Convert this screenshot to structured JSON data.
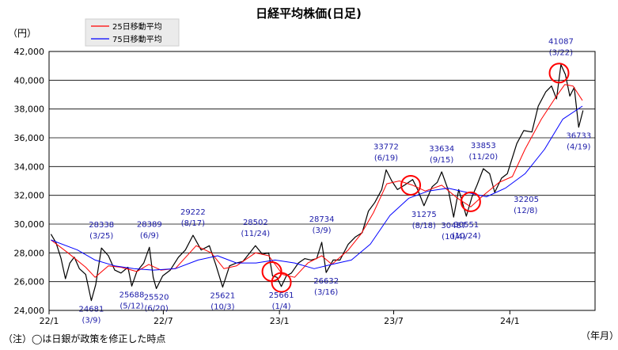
{
  "chart_data": {
    "type": "line",
    "title": "日経平均株価(日足)",
    "y_unit": "（円）",
    "x_unit": "（年月）",
    "ylim": [
      24000,
      42000
    ],
    "yticks": [
      24000,
      26000,
      28000,
      30000,
      32000,
      34000,
      36000,
      38000,
      40000,
      42000
    ],
    "ytick_labels": [
      "24,000",
      "26,000",
      "28,000",
      "30,000",
      "32,000",
      "34,000",
      "36,000",
      "38,000",
      "40,000",
      "42,000"
    ],
    "xlim": [
      "2022-01-01",
      "2024-05-15"
    ],
    "xticks": [
      {
        "date": "2022-01-01",
        "label": "22/1"
      },
      {
        "date": "2022-07-01",
        "label": "22/7"
      },
      {
        "date": "2023-01-01",
        "label": "23/1"
      },
      {
        "date": "2023-07-01",
        "label": "23/7"
      },
      {
        "date": "2024-01-01",
        "label": "24/1"
      }
    ],
    "grid": true,
    "legend_position": "top-left",
    "series": [
      {
        "name": "25日移動平均",
        "color": "#ff0000",
        "points": [
          [
            "2022-01-04",
            28900
          ],
          [
            "2022-01-31",
            28000
          ],
          [
            "2022-02-28",
            27000
          ],
          [
            "2022-03-15",
            26300
          ],
          [
            "2022-04-05",
            27100
          ],
          [
            "2022-04-25",
            27000
          ],
          [
            "2022-05-20",
            26700
          ],
          [
            "2022-06-08",
            27200
          ],
          [
            "2022-06-27",
            26800
          ],
          [
            "2022-07-20",
            26900
          ],
          [
            "2022-08-22",
            28500
          ],
          [
            "2022-09-15",
            28000
          ],
          [
            "2022-10-05",
            26900
          ],
          [
            "2022-10-25",
            27100
          ],
          [
            "2022-11-24",
            28000
          ],
          [
            "2022-12-15",
            27800
          ],
          [
            "2023-01-06",
            26500
          ],
          [
            "2023-01-25",
            26300
          ],
          [
            "2023-02-15",
            27300
          ],
          [
            "2023-03-09",
            27800
          ],
          [
            "2023-03-25",
            27200
          ],
          [
            "2023-04-20",
            28200
          ],
          [
            "2023-05-10",
            29300
          ],
          [
            "2023-05-30",
            30800
          ],
          [
            "2023-06-20",
            32800
          ],
          [
            "2023-07-10",
            33000
          ],
          [
            "2023-07-31",
            32700
          ],
          [
            "2023-08-20",
            32300
          ],
          [
            "2023-09-15",
            32700
          ],
          [
            "2023-10-10",
            31800
          ],
          [
            "2023-10-31",
            31200
          ],
          [
            "2023-11-20",
            32000
          ],
          [
            "2023-12-15",
            32900
          ],
          [
            "2024-01-05",
            33300
          ],
          [
            "2024-01-25",
            35200
          ],
          [
            "2024-02-20",
            37300
          ],
          [
            "2024-03-15",
            38900
          ],
          [
            "2024-03-28",
            39700
          ],
          [
            "2024-04-10",
            39600
          ],
          [
            "2024-04-25",
            38600
          ]
        ]
      },
      {
        "name": "75日移動平均",
        "color": "#0000ff",
        "points": [
          [
            "2022-01-04",
            28900
          ],
          [
            "2022-02-15",
            28200
          ],
          [
            "2022-03-15",
            27500
          ],
          [
            "2022-04-15",
            27100
          ],
          [
            "2022-05-15",
            26900
          ],
          [
            "2022-06-15",
            26800
          ],
          [
            "2022-07-20",
            26900
          ],
          [
            "2022-08-25",
            27500
          ],
          [
            "2022-09-25",
            27800
          ],
          [
            "2022-10-25",
            27300
          ],
          [
            "2022-11-25",
            27300
          ],
          [
            "2022-12-25",
            27500
          ],
          [
            "2023-01-25",
            27300
          ],
          [
            "2023-02-25",
            26900
          ],
          [
            "2023-03-25",
            27200
          ],
          [
            "2023-04-25",
            27500
          ],
          [
            "2023-05-25",
            28600
          ],
          [
            "2023-06-25",
            30600
          ],
          [
            "2023-07-25",
            31800
          ],
          [
            "2023-08-25",
            32300
          ],
          [
            "2023-09-25",
            32500
          ],
          [
            "2023-10-25",
            32200
          ],
          [
            "2023-11-25",
            31900
          ],
          [
            "2023-12-25",
            32500
          ],
          [
            "2024-01-25",
            33500
          ],
          [
            "2024-02-25",
            35200
          ],
          [
            "2024-03-25",
            37300
          ],
          [
            "2024-04-25",
            38200
          ]
        ]
      },
      {
        "name": "日足",
        "color": "#000000",
        "points": [
          [
            "2022-01-04",
            29300
          ],
          [
            "2022-01-12",
            28700
          ],
          [
            "2022-01-20",
            27600
          ],
          [
            "2022-01-27",
            26200
          ],
          [
            "2022-02-03",
            27300
          ],
          [
            "2022-02-10",
            27700
          ],
          [
            "2022-02-18",
            26900
          ],
          [
            "2022-02-28",
            26500
          ],
          [
            "2022-03-09",
            24681
          ],
          [
            "2022-03-16",
            25800
          ],
          [
            "2022-03-25",
            28338
          ],
          [
            "2022-04-05",
            27800
          ],
          [
            "2022-04-15",
            26800
          ],
          [
            "2022-04-25",
            26600
          ],
          [
            "2022-05-06",
            27000
          ],
          [
            "2022-05-12",
            25688
          ],
          [
            "2022-05-20",
            26700
          ],
          [
            "2022-05-31",
            27300
          ],
          [
            "2022-06-09",
            28389
          ],
          [
            "2022-06-15",
            26300
          ],
          [
            "2022-06-20",
            25520
          ],
          [
            "2022-06-30",
            26400
          ],
          [
            "2022-07-12",
            26800
          ],
          [
            "2022-07-25",
            27700
          ],
          [
            "2022-08-05",
            28200
          ],
          [
            "2022-08-17",
            29222
          ],
          [
            "2022-08-30",
            28200
          ],
          [
            "2022-09-12",
            28500
          ],
          [
            "2022-09-22",
            27200
          ],
          [
            "2022-10-03",
            25621
          ],
          [
            "2022-10-14",
            27100
          ],
          [
            "2022-10-25",
            27300
          ],
          [
            "2022-11-04",
            27400
          ],
          [
            "2022-11-15",
            28000
          ],
          [
            "2022-11-24",
            28502
          ],
          [
            "2022-12-05",
            27900
          ],
          [
            "2022-12-15",
            28000
          ],
          [
            "2022-12-21",
            26400
          ],
          [
            "2022-12-28",
            26300
          ],
          [
            "2023-01-04",
            25661
          ],
          [
            "2023-01-12",
            26400
          ],
          [
            "2023-01-20",
            26600
          ],
          [
            "2023-01-31",
            27300
          ],
          [
            "2023-02-10",
            27600
          ],
          [
            "2023-02-20",
            27500
          ],
          [
            "2023-03-01",
            27600
          ],
          [
            "2023-03-09",
            28734
          ],
          [
            "2023-03-16",
            26632
          ],
          [
            "2023-03-27",
            27500
          ],
          [
            "2023-04-07",
            27500
          ],
          [
            "2023-04-20",
            28600
          ],
          [
            "2023-05-01",
            29100
          ],
          [
            "2023-05-12",
            29400
          ],
          [
            "2023-05-22",
            30900
          ],
          [
            "2023-06-01",
            31500
          ],
          [
            "2023-06-12",
            32400
          ],
          [
            "2023-06-19",
            33772
          ],
          [
            "2023-06-28",
            33000
          ],
          [
            "2023-07-07",
            32400
          ],
          [
            "2023-07-18",
            32700
          ],
          [
            "2023-07-31",
            33100
          ],
          [
            "2023-08-08",
            32400
          ],
          [
            "2023-08-18",
            31275
          ],
          [
            "2023-08-31",
            32600
          ],
          [
            "2023-09-08",
            32900
          ],
          [
            "2023-09-15",
            33634
          ],
          [
            "2023-09-26",
            32300
          ],
          [
            "2023-10-04",
            30487
          ],
          [
            "2023-10-12",
            32400
          ],
          [
            "2023-10-24",
            30551
          ],
          [
            "2023-11-02",
            31900
          ],
          [
            "2023-11-10",
            32700
          ],
          [
            "2023-11-20",
            33853
          ],
          [
            "2023-11-30",
            33500
          ],
          [
            "2023-12-08",
            32205
          ],
          [
            "2023-12-19",
            33200
          ],
          [
            "2023-12-28",
            33500
          ],
          [
            "2024-01-12",
            35600
          ],
          [
            "2024-01-23",
            36500
          ],
          [
            "2024-02-05",
            36400
          ],
          [
            "2024-02-15",
            38200
          ],
          [
            "2024-02-27",
            39200
          ],
          [
            "2024-03-07",
            39600
          ],
          [
            "2024-03-15",
            38700
          ],
          [
            "2024-03-22",
            41087
          ],
          [
            "2024-03-29",
            40400
          ],
          [
            "2024-04-05",
            38900
          ],
          [
            "2024-04-12",
            39500
          ],
          [
            "2024-04-19",
            36733
          ],
          [
            "2024-04-26",
            37900
          ]
        ]
      }
    ],
    "annotations": [
      {
        "value": "24681",
        "date": "(3/9)",
        "x": "2022-03-09",
        "y": 24681,
        "pos": "below"
      },
      {
        "value": "28338",
        "date": "(3/25)",
        "x": "2022-03-25",
        "y": 28338,
        "pos": "above"
      },
      {
        "value": "25688",
        "date": "(5/12)",
        "x": "2022-05-12",
        "y": 25688,
        "pos": "below"
      },
      {
        "value": "28389",
        "date": "(6/9)",
        "x": "2022-06-09",
        "y": 28389,
        "pos": "above"
      },
      {
        "value": "25520",
        "date": "(6/20)",
        "x": "2022-06-20",
        "y": 25520,
        "pos": "below"
      },
      {
        "value": "29222",
        "date": "(8/17)",
        "x": "2022-08-17",
        "y": 29222,
        "pos": "above"
      },
      {
        "value": "25621",
        "date": "(10/3)",
        "x": "2022-10-03",
        "y": 25621,
        "pos": "below"
      },
      {
        "value": "28502",
        "date": "(11/24)",
        "x": "2022-11-24",
        "y": 28502,
        "pos": "above"
      },
      {
        "value": "25661",
        "date": "(1/4)",
        "x": "2023-01-04",
        "y": 25661,
        "pos": "below"
      },
      {
        "value": "28734",
        "date": "(3/9)",
        "x": "2023-03-09",
        "y": 28734,
        "pos": "above"
      },
      {
        "value": "26632",
        "date": "(3/16)",
        "x": "2023-03-16",
        "y": 26632,
        "pos": "below"
      },
      {
        "value": "33772",
        "date": "(6/19)",
        "x": "2023-06-19",
        "y": 33772,
        "pos": "above"
      },
      {
        "value": "31275",
        "date": "(8/18)",
        "x": "2023-08-18",
        "y": 31275,
        "pos": "below"
      },
      {
        "value": "33634",
        "date": "(9/15)",
        "x": "2023-09-15",
        "y": 33634,
        "pos": "above"
      },
      {
        "value": "30487",
        "date": "(10/4)",
        "x": "2023-10-04",
        "y": 30487,
        "pos": "below"
      },
      {
        "value": "30551",
        "date": "(10/24)",
        "x": "2023-10-24",
        "y": 30551,
        "pos": "below"
      },
      {
        "value": "33853",
        "date": "(11/20)",
        "x": "2023-11-20",
        "y": 33853,
        "pos": "above"
      },
      {
        "value": "32205",
        "date": "(12/8)",
        "x": "2023-12-08",
        "y": 32205,
        "pos": "right"
      },
      {
        "value": "41087",
        "date": "(3/22)",
        "x": "2024-03-22",
        "y": 41087,
        "pos": "above"
      },
      {
        "value": "36733",
        "date": "(4/19)",
        "x": "2024-04-19",
        "y": 36733,
        "pos": "below"
      }
    ],
    "policy_markers": [
      {
        "date": "2022-12-20",
        "y": 26700
      },
      {
        "date": "2023-01-04",
        "y": 25950
      },
      {
        "date": "2023-07-28",
        "y": 32700
      },
      {
        "date": "2023-10-31",
        "y": 31550
      },
      {
        "date": "2024-03-19",
        "y": 40500
      }
    ],
    "note": "（注）◯は日銀が政策を修正した時点"
  }
}
